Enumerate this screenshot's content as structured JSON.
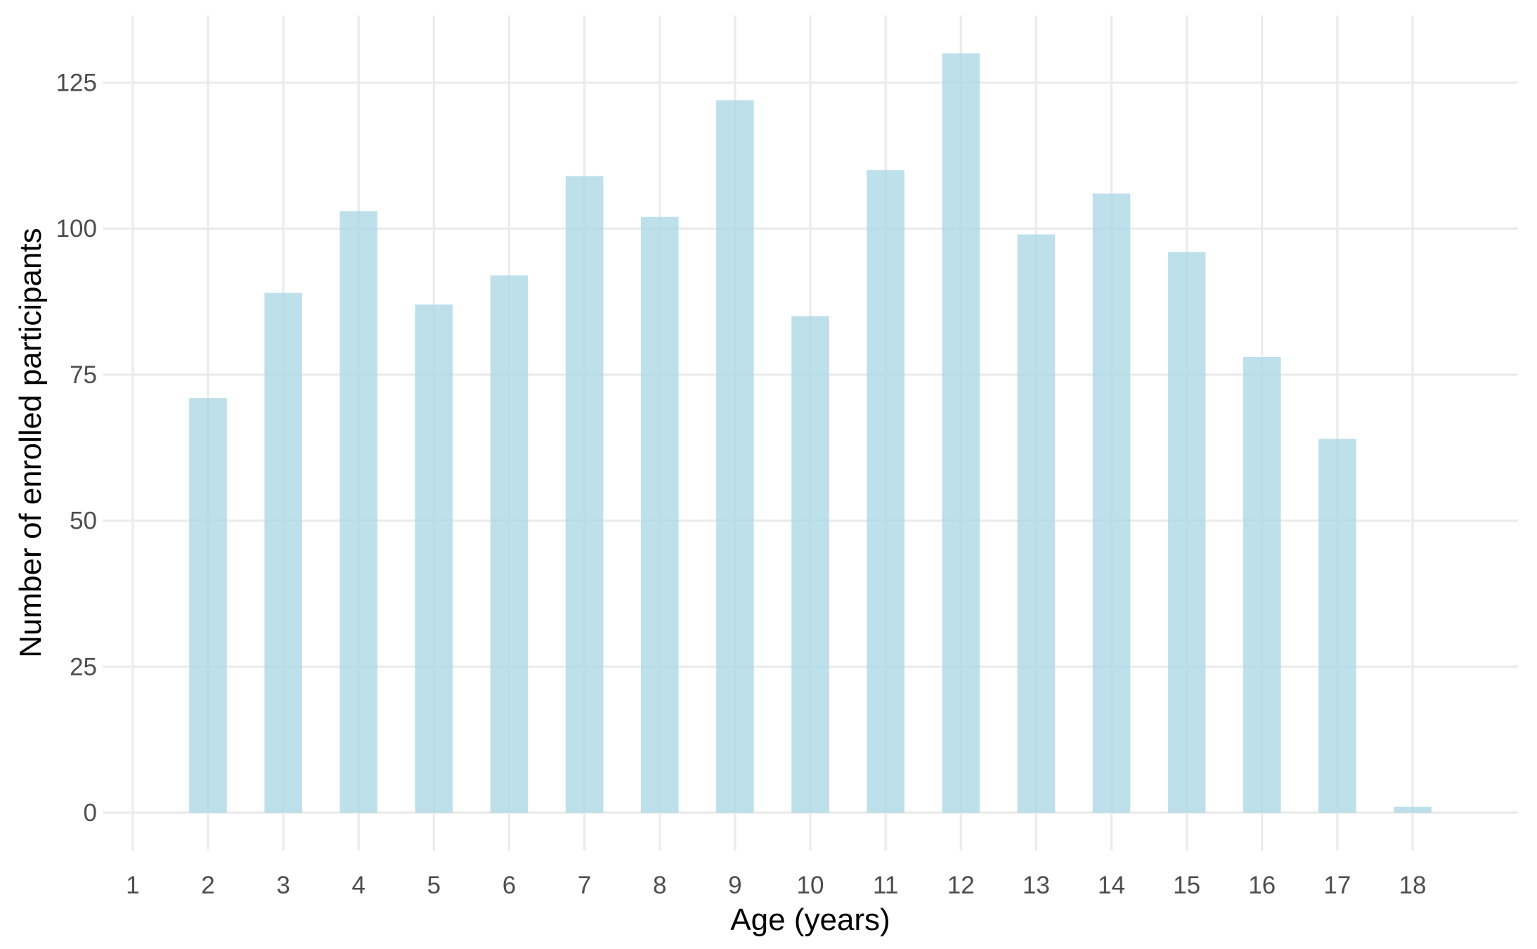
{
  "chart_data": {
    "type": "bar",
    "title": "",
    "xlabel": "Age (years)",
    "ylabel": "Number of enrolled participants",
    "x_ticks": [
      "1",
      "2",
      "3",
      "4",
      "5",
      "6",
      "7",
      "8",
      "9",
      "10",
      "11",
      "12",
      "13",
      "14",
      "15",
      "16",
      "17",
      "18"
    ],
    "y_ticks": [
      "0",
      "25",
      "50",
      "75",
      "100",
      "125"
    ],
    "categories": [
      2,
      3,
      4,
      5,
      6,
      7,
      8,
      9,
      10,
      11,
      12,
      13,
      14,
      15,
      16,
      17,
      18
    ],
    "values": [
      71,
      89,
      103,
      87,
      92,
      109,
      102,
      122,
      85,
      110,
      130,
      99,
      106,
      96,
      78,
      64,
      1
    ],
    "xlim": [
      0.6,
      19.4
    ],
    "ylim": [
      -6.5,
      136.5
    ],
    "grid": true,
    "legend": "none",
    "bar_color": "#add8e6",
    "bar_opacity": 0.8
  }
}
